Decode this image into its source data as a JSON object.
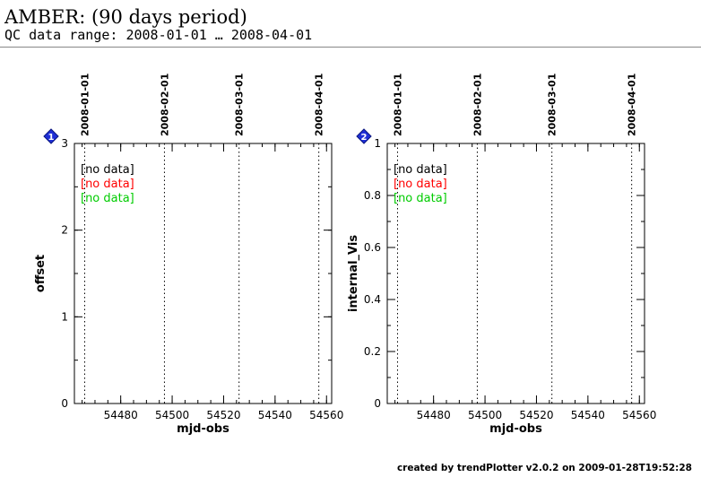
{
  "header": {
    "title": "AMBER: (90 days period)",
    "subtitle": "QC data range: 2008-01-01 … 2008-04-01"
  },
  "footer": {
    "text": "created by trendPlotter v2.0.2 on 2009-01-28T19:52:28"
  },
  "colors": {
    "badge": "#1f2fd6",
    "series": [
      "#000000",
      "#ff0000",
      "#00cc00"
    ],
    "axis": "#000000"
  },
  "chart_data": [
    {
      "type": "scatter",
      "badge": "1",
      "xlabel": "mjd-obs",
      "ylabel": "offset",
      "xlim": [
        54462,
        54562
      ],
      "ylim": [
        0,
        3
      ],
      "x_major_ticks": [
        54480,
        54500,
        54520,
        54540,
        54560
      ],
      "x_minor_step": 5,
      "y_major_ticks": [
        0,
        1,
        2,
        3
      ],
      "y_minor_step": 0.5,
      "date_markers": [
        {
          "label": "2008-01-01",
          "x": 54466
        },
        {
          "label": "2008-02-01",
          "x": 54497
        },
        {
          "label": "2008-03-01",
          "x": 54526
        },
        {
          "label": "2008-04-01",
          "x": 54557
        }
      ],
      "series": [
        {
          "label": "[no data]",
          "color": "#000000",
          "values": []
        },
        {
          "label": "[no data]",
          "color": "#ff0000",
          "values": []
        },
        {
          "label": "[no data]",
          "color": "#00cc00",
          "values": []
        }
      ]
    },
    {
      "type": "scatter",
      "badge": "2",
      "xlabel": "mjd-obs",
      "ylabel": "internal_Vis",
      "xlim": [
        54462,
        54562
      ],
      "ylim": [
        0,
        1
      ],
      "x_major_ticks": [
        54480,
        54500,
        54520,
        54540,
        54560
      ],
      "x_minor_step": 5,
      "y_major_ticks": [
        0,
        0.2,
        0.4,
        0.6,
        0.8,
        1
      ],
      "y_minor_step": 0.1,
      "date_markers": [
        {
          "label": "2008-01-01",
          "x": 54466
        },
        {
          "label": "2008-02-01",
          "x": 54497
        },
        {
          "label": "2008-03-01",
          "x": 54526
        },
        {
          "label": "2008-04-01",
          "x": 54557
        }
      ],
      "series": [
        {
          "label": "[no data]",
          "color": "#000000",
          "values": []
        },
        {
          "label": "[no data]",
          "color": "#ff0000",
          "values": []
        },
        {
          "label": "[no data]",
          "color": "#00cc00",
          "values": []
        }
      ]
    }
  ]
}
